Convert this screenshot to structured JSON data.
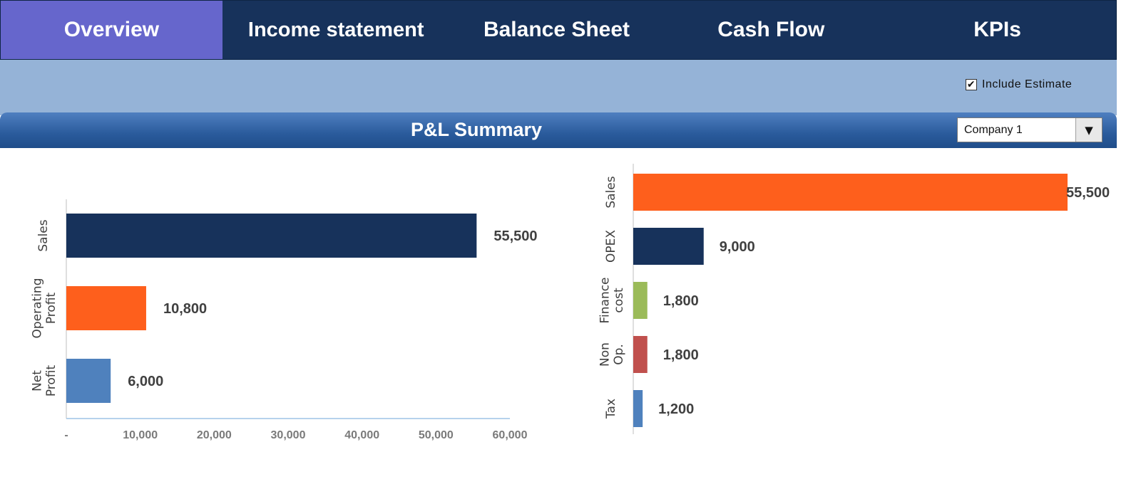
{
  "nav": {
    "tabs": [
      {
        "label": "Overview",
        "active": true
      },
      {
        "label": "Income statement",
        "active": false
      },
      {
        "label": "Balance Sheet",
        "active": false
      },
      {
        "label": "Cash Flow",
        "active": false
      },
      {
        "label": "KPIs",
        "active": false
      }
    ]
  },
  "options": {
    "include_estimate_label": "Include Estimate",
    "include_estimate_checked": true,
    "checkmark": "✔"
  },
  "section": {
    "title": "P&L Summary",
    "company_select": {
      "value": "Company 1",
      "arrow": "▼"
    }
  },
  "colors": {
    "nav_bg": "#17325b",
    "nav_active": "#6666cc",
    "band": "#95b3d7",
    "navy": "#17325b",
    "orange": "#fe5f1c",
    "light_blue": "#4f81bd",
    "green": "#9bbb59",
    "red": "#c0504d"
  },
  "chart_data": [
    {
      "type": "bar",
      "orientation": "horizontal",
      "categories": [
        "Sales",
        "Operating Profit",
        "Net Profit"
      ],
      "values": [
        55500,
        10800,
        6000
      ],
      "value_labels": [
        "55,500",
        "10,800",
        "6,000"
      ],
      "bar_colors": [
        "#17325b",
        "#fe5f1c",
        "#4f81bd"
      ],
      "xlim": [
        0,
        60000
      ],
      "xticks": [
        0,
        10000,
        20000,
        30000,
        40000,
        50000,
        60000
      ],
      "xtick_labels": [
        "-",
        "10,000",
        "20,000",
        "30,000",
        "40,000",
        "50,000",
        "60,000"
      ],
      "title": "",
      "xlabel": "",
      "ylabel": "",
      "grid": false
    },
    {
      "type": "bar",
      "orientation": "horizontal",
      "categories": [
        "Sales",
        "OPEX",
        "Finance cost",
        "Non Op.",
        "Tax"
      ],
      "values": [
        55500,
        9000,
        1800,
        1800,
        1200
      ],
      "value_labels": [
        "55,500",
        "9,000",
        "1,800",
        "1,800",
        "1,200"
      ],
      "bar_colors": [
        "#fe5f1c",
        "#17325b",
        "#9bbb59",
        "#c0504d",
        "#4f81bd"
      ],
      "xlim": [
        0,
        55500
      ],
      "title": "",
      "xlabel": "",
      "ylabel": "",
      "grid": false
    }
  ]
}
